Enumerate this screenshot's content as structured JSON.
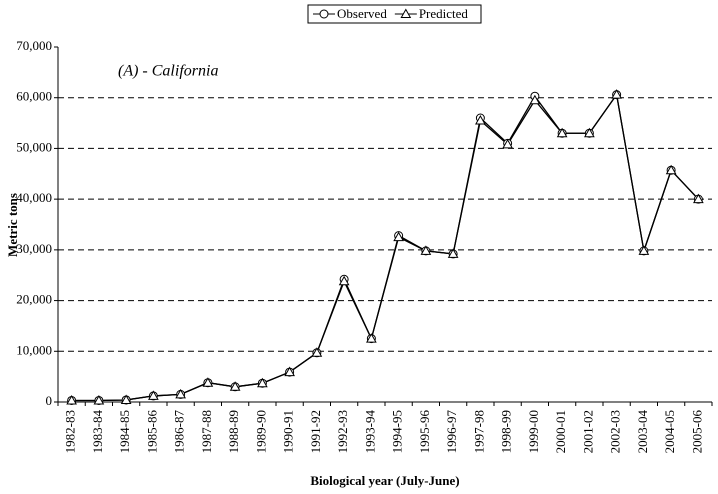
{
  "chart_data": {
    "type": "line",
    "annotation": "(A) - California",
    "x_label": "Biological year (July-June)",
    "y_label": "Metric tons",
    "categories": [
      "1982-83",
      "1983-84",
      "1984-85",
      "1985-86",
      "1986-87",
      "1987-88",
      "1988-89",
      "1989-90",
      "1990-91",
      "1991-92",
      "1992-93",
      "1993-94",
      "1994-95",
      "1995-96",
      "1996-97",
      "1997-98",
      "1998-99",
      "1999-00",
      "2000-01",
      "2001-02",
      "2002-03",
      "2003-04",
      "2004-05",
      "2005-06"
    ],
    "series": [
      {
        "name": "Observed",
        "color": "#000000",
        "marker": "circle",
        "values": [
          300,
          300,
          400,
          1200,
          1500,
          3800,
          3000,
          3700,
          5900,
          9700,
          24200,
          12500,
          32800,
          29800,
          29200,
          56000,
          51000,
          60300,
          53000,
          53000,
          60600,
          29800,
          45700,
          40000
        ]
      },
      {
        "name": "Predicted",
        "color": "#000000",
        "marker": "triangle",
        "values": [
          300,
          300,
          400,
          1200,
          1500,
          3800,
          3000,
          3700,
          5900,
          9700,
          23800,
          12500,
          32500,
          29800,
          29200,
          55500,
          50800,
          59500,
          53000,
          53000,
          60600,
          29800,
          45700,
          40000
        ]
      }
    ],
    "ylim": [
      0,
      70000
    ],
    "yticks": [
      {
        "value": 0,
        "label": "0"
      },
      {
        "value": 10000,
        "label": "10,000"
      },
      {
        "value": 20000,
        "label": "20,000"
      },
      {
        "value": 30000,
        "label": "30,000"
      },
      {
        "value": 40000,
        "label": "40,000"
      },
      {
        "value": 50000,
        "label": "50,000"
      },
      {
        "value": 60000,
        "label": "60,000"
      },
      {
        "value": 70000,
        "label": "70,000"
      }
    ],
    "grid": true,
    "legend": "top"
  }
}
